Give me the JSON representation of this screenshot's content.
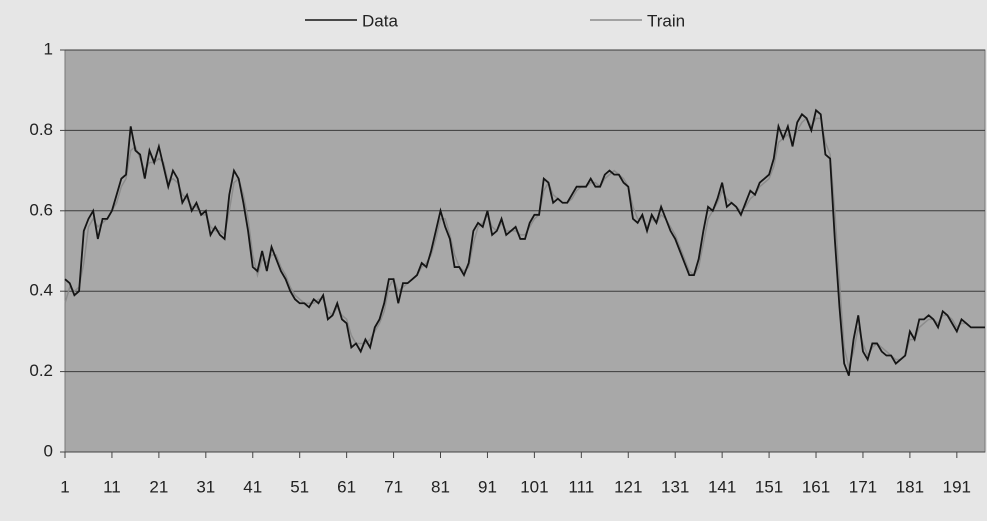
{
  "chart_data": {
    "type": "line",
    "x": [
      1,
      2,
      3,
      4,
      5,
      6,
      7,
      8,
      9,
      10,
      11,
      12,
      13,
      14,
      15,
      16,
      17,
      18,
      19,
      20,
      21,
      22,
      23,
      24,
      25,
      26,
      27,
      28,
      29,
      30,
      31,
      32,
      33,
      34,
      35,
      36,
      37,
      38,
      39,
      40,
      41,
      42,
      43,
      44,
      45,
      46,
      47,
      48,
      49,
      50,
      51,
      52,
      53,
      54,
      55,
      56,
      57,
      58,
      59,
      60,
      61,
      62,
      63,
      64,
      65,
      66,
      67,
      68,
      69,
      70,
      71,
      72,
      73,
      74,
      75,
      76,
      77,
      78,
      79,
      80,
      81,
      82,
      83,
      84,
      85,
      86,
      87,
      88,
      89,
      90,
      91,
      92,
      93,
      94,
      95,
      96,
      97,
      98,
      99,
      100,
      101,
      102,
      103,
      104,
      105,
      106,
      107,
      108,
      109,
      110,
      111,
      112,
      113,
      114,
      115,
      116,
      117,
      118,
      119,
      120,
      121,
      122,
      123,
      124,
      125,
      126,
      127,
      128,
      129,
      130,
      131,
      132,
      133,
      134,
      135,
      136,
      137,
      138,
      139,
      140,
      141,
      142,
      143,
      144,
      145,
      146,
      147,
      148,
      149,
      150,
      151,
      152,
      153,
      154,
      155,
      156,
      157,
      158,
      159,
      160,
      161,
      162,
      163,
      164,
      165,
      166,
      167,
      168,
      169,
      170,
      171,
      172,
      173,
      174,
      175,
      176,
      177,
      178,
      179,
      180,
      181,
      182,
      183,
      184,
      185,
      186,
      187,
      188,
      189,
      190,
      191,
      192,
      193,
      194,
      195,
      196,
      197
    ],
    "series": [
      {
        "name": "Data",
        "color": "#151515",
        "values": [
          0.43,
          0.42,
          0.39,
          0.4,
          0.55,
          0.58,
          0.6,
          0.53,
          0.58,
          0.58,
          0.6,
          0.64,
          0.68,
          0.69,
          0.81,
          0.75,
          0.74,
          0.68,
          0.75,
          0.72,
          0.76,
          0.71,
          0.66,
          0.7,
          0.68,
          0.62,
          0.64,
          0.6,
          0.62,
          0.59,
          0.6,
          0.54,
          0.56,
          0.54,
          0.53,
          0.64,
          0.7,
          0.68,
          0.62,
          0.55,
          0.46,
          0.45,
          0.5,
          0.45,
          0.51,
          0.48,
          0.45,
          0.43,
          0.4,
          0.38,
          0.37,
          0.37,
          0.36,
          0.38,
          0.37,
          0.39,
          0.33,
          0.34,
          0.37,
          0.33,
          0.32,
          0.26,
          0.27,
          0.25,
          0.28,
          0.26,
          0.31,
          0.33,
          0.37,
          0.43,
          0.43,
          0.37,
          0.42,
          0.42,
          0.43,
          0.44,
          0.47,
          0.46,
          0.5,
          0.55,
          0.6,
          0.56,
          0.53,
          0.46,
          0.46,
          0.44,
          0.47,
          0.55,
          0.57,
          0.56,
          0.6,
          0.54,
          0.55,
          0.58,
          0.54,
          0.55,
          0.56,
          0.53,
          0.53,
          0.57,
          0.59,
          0.59,
          0.68,
          0.67,
          0.62,
          0.63,
          0.62,
          0.62,
          0.64,
          0.66,
          0.66,
          0.66,
          0.68,
          0.66,
          0.66,
          0.69,
          0.7,
          0.69,
          0.69,
          0.67,
          0.66,
          0.58,
          0.57,
          0.59,
          0.55,
          0.59,
          0.57,
          0.61,
          0.58,
          0.55,
          0.53,
          0.5,
          0.47,
          0.44,
          0.44,
          0.48,
          0.55,
          0.61,
          0.6,
          0.63,
          0.67,
          0.61,
          0.62,
          0.61,
          0.59,
          0.62,
          0.65,
          0.64,
          0.67,
          0.68,
          0.69,
          0.73,
          0.81,
          0.78,
          0.81,
          0.76,
          0.82,
          0.84,
          0.83,
          0.8,
          0.85,
          0.84,
          0.74,
          0.73,
          0.53,
          0.36,
          0.22,
          0.19,
          0.28,
          0.34,
          0.25,
          0.23,
          0.27,
          0.27,
          0.25,
          0.24,
          0.24,
          0.22,
          0.23,
          0.24,
          0.3,
          0.28,
          0.33,
          0.33,
          0.34,
          0.33,
          0.31,
          0.35,
          0.34,
          0.32,
          0.3,
          0.33,
          0.32,
          0.31,
          0.31,
          0.31,
          0.31
        ]
      },
      {
        "name": "Train",
        "color": "#8c8c8c",
        "values": [
          0.37,
          0.41,
          0.4,
          0.41,
          0.47,
          0.56,
          0.58,
          0.56,
          0.57,
          0.58,
          0.6,
          0.62,
          0.66,
          0.68,
          0.75,
          0.76,
          0.73,
          0.7,
          0.72,
          0.72,
          0.73,
          0.72,
          0.67,
          0.68,
          0.67,
          0.64,
          0.63,
          0.61,
          0.61,
          0.59,
          0.59,
          0.56,
          0.55,
          0.55,
          0.54,
          0.6,
          0.67,
          0.68,
          0.64,
          0.58,
          0.49,
          0.44,
          0.48,
          0.47,
          0.49,
          0.49,
          0.46,
          0.44,
          0.41,
          0.39,
          0.38,
          0.37,
          0.37,
          0.37,
          0.38,
          0.38,
          0.35,
          0.34,
          0.36,
          0.34,
          0.33,
          0.29,
          0.27,
          0.27,
          0.27,
          0.28,
          0.3,
          0.32,
          0.35,
          0.41,
          0.43,
          0.4,
          0.41,
          0.42,
          0.43,
          0.44,
          0.46,
          0.47,
          0.49,
          0.53,
          0.58,
          0.58,
          0.54,
          0.49,
          0.46,
          0.45,
          0.46,
          0.52,
          0.56,
          0.57,
          0.59,
          0.56,
          0.55,
          0.57,
          0.55,
          0.55,
          0.55,
          0.54,
          0.54,
          0.56,
          0.58,
          0.59,
          0.65,
          0.67,
          0.64,
          0.63,
          0.62,
          0.62,
          0.63,
          0.65,
          0.66,
          0.66,
          0.67,
          0.67,
          0.66,
          0.68,
          0.69,
          0.7,
          0.69,
          0.68,
          0.66,
          0.61,
          0.58,
          0.58,
          0.56,
          0.58,
          0.57,
          0.59,
          0.58,
          0.56,
          0.54,
          0.51,
          0.48,
          0.45,
          0.44,
          0.46,
          0.52,
          0.58,
          0.6,
          0.62,
          0.65,
          0.63,
          0.62,
          0.61,
          0.6,
          0.61,
          0.63,
          0.64,
          0.66,
          0.67,
          0.68,
          0.71,
          0.77,
          0.78,
          0.79,
          0.77,
          0.8,
          0.82,
          0.83,
          0.81,
          0.83,
          0.83,
          0.77,
          0.74,
          0.6,
          0.42,
          0.26,
          0.21,
          0.25,
          0.31,
          0.27,
          0.24,
          0.26,
          0.27,
          0.26,
          0.25,
          0.24,
          0.23,
          0.23,
          0.24,
          0.28,
          0.28,
          0.31,
          0.32,
          0.33,
          0.33,
          0.32,
          0.34,
          0.34,
          0.33,
          0.31,
          0.32,
          0.32,
          0.31,
          0.31,
          0.31,
          0.31
        ]
      }
    ],
    "xlim": [
      1,
      197
    ],
    "xticks": [
      1,
      11,
      21,
      31,
      41,
      51,
      61,
      71,
      81,
      91,
      101,
      111,
      121,
      131,
      141,
      151,
      161,
      171,
      181,
      191
    ],
    "ylim": [
      0,
      1
    ],
    "yticks": [
      0,
      0.2,
      0.4,
      0.6,
      0.8,
      1
    ],
    "grid": true
  }
}
